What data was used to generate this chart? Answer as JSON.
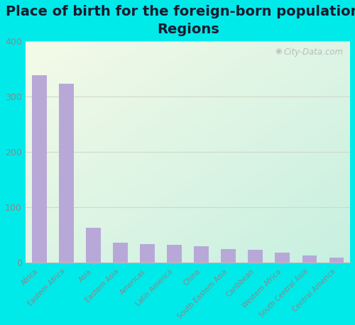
{
  "title": "Place of birth for the foreign-born population -\nRegions",
  "categories": [
    "Africa",
    "Eastern Africa",
    "Asia",
    "Eastern Asia",
    "Americas",
    "Latin America",
    "China",
    "South Eastern Asia",
    "Caribbean",
    "Western Africa",
    "South Central Asia",
    "Central America"
  ],
  "values": [
    338,
    323,
    63,
    37,
    34,
    33,
    30,
    25,
    24,
    18,
    13,
    9
  ],
  "bar_color": "#b8a8d8",
  "background_color": "#00eaea",
  "plot_bg_top_left": "#f5f8e8",
  "plot_bg_bottom_right": "#c8f0e0",
  "ylim": [
    0,
    400
  ],
  "yticks": [
    0,
    100,
    200,
    300,
    400
  ],
  "title_fontsize": 14,
  "title_color": "#1a1a2e",
  "tick_label_color": "#888888",
  "grid_color": "#d0d8c8",
  "watermark": "City-Data.com"
}
